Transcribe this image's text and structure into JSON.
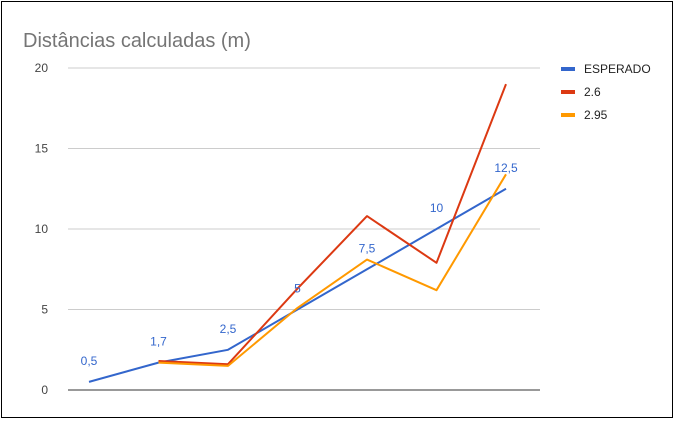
{
  "chart_data": {
    "type": "line",
    "title": "Distâncias calculadas (m)",
    "xlabel": "",
    "ylabel": "",
    "ylim": [
      0,
      20
    ],
    "yticks": [
      0,
      5,
      10,
      15,
      20
    ],
    "grid": true,
    "legend_position": "right",
    "x": [
      1,
      2,
      3,
      4,
      5,
      6,
      7
    ],
    "series": [
      {
        "name": "ESPERADO",
        "color": "#3366cc",
        "values": [
          0.5,
          1.7,
          2.5,
          5,
          7.5,
          10,
          12.5
        ],
        "labels": [
          "0,5",
          "1,7",
          "2,5",
          "5",
          "7,5",
          "10",
          "12,5"
        ]
      },
      {
        "name": "2.6",
        "color": "#dc3912",
        "values": [
          null,
          1.8,
          1.6,
          6.3,
          10.8,
          7.9,
          19
        ]
      },
      {
        "name": "2.95",
        "color": "#ff9900",
        "values": [
          null,
          1.7,
          1.5,
          5.1,
          8.1,
          6.2,
          13.4
        ]
      }
    ]
  }
}
